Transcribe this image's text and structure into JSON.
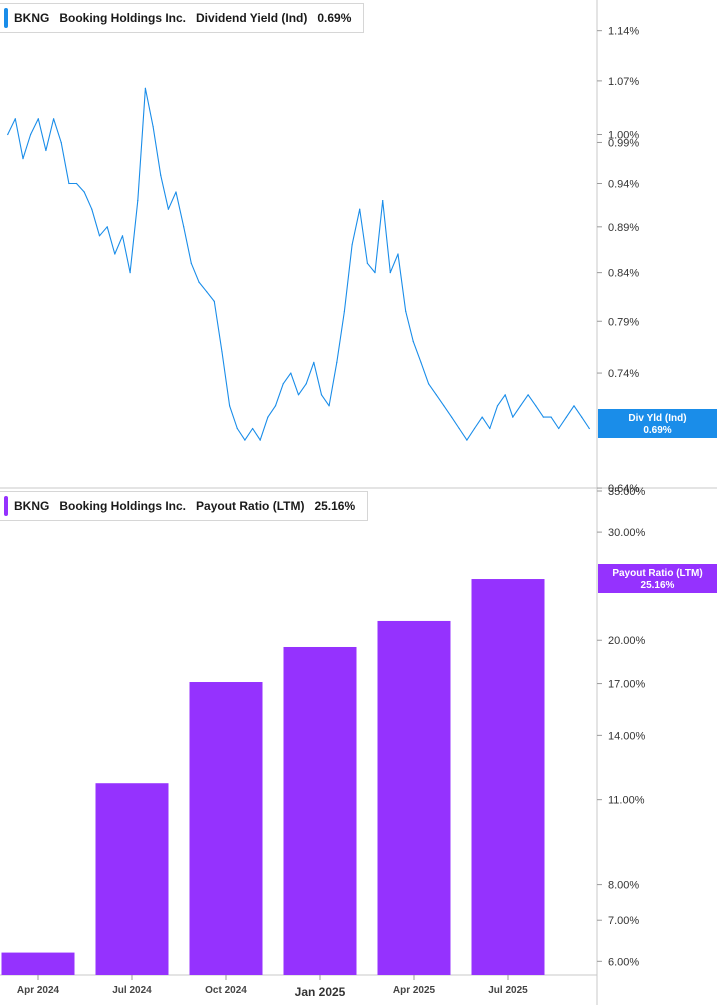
{
  "chart_data": [
    {
      "type": "line",
      "legend": {
        "ticker": "BKNG",
        "company": "Booking Holdings Inc.",
        "metric": "Dividend Yield (Ind)",
        "value": "0.69%"
      },
      "badge": {
        "label": "Div Yld (Ind)",
        "value": "0.69%"
      },
      "color": "#1a8de9",
      "y_scale": "log",
      "ylim": [
        0.64,
        1.14
      ],
      "y_ticks": [
        "1.14%",
        "1.07%",
        "1.00%",
        "0.99%",
        "0.94%",
        "0.89%",
        "0.84%",
        "0.79%",
        "0.74%",
        "0.64%"
      ],
      "series": [
        {
          "x": [
            "2024-03-08",
            "2024-03-15",
            "2024-03-22",
            "2024-03-29",
            "2024-04-05",
            "2024-04-12",
            "2024-04-19",
            "2024-04-26",
            "2024-05-03",
            "2024-05-10",
            "2024-05-17",
            "2024-05-24",
            "2024-05-31",
            "2024-06-07",
            "2024-06-14",
            "2024-06-21",
            "2024-06-28",
            "2024-07-05",
            "2024-07-12",
            "2024-07-19",
            "2024-07-26",
            "2024-08-02",
            "2024-08-09",
            "2024-08-16",
            "2024-08-23",
            "2024-08-30",
            "2024-09-06",
            "2024-09-13",
            "2024-09-20",
            "2024-09-27",
            "2024-10-04",
            "2024-10-11",
            "2024-10-18",
            "2024-10-25",
            "2024-11-01",
            "2024-11-08",
            "2024-11-15",
            "2024-11-22",
            "2024-11-29",
            "2024-12-06",
            "2024-12-13",
            "2024-12-20",
            "2024-12-27",
            "2025-01-03",
            "2025-01-10",
            "2025-01-17",
            "2025-01-24",
            "2025-01-31",
            "2025-02-07",
            "2025-02-14",
            "2025-02-21",
            "2025-02-28",
            "2025-03-07",
            "2025-03-14",
            "2025-03-21",
            "2025-03-28",
            "2025-04-04",
            "2025-04-11",
            "2025-04-18",
            "2025-04-25",
            "2025-05-02",
            "2025-05-09",
            "2025-05-16",
            "2025-05-23",
            "2025-05-30",
            "2025-06-06",
            "2025-06-13",
            "2025-06-20",
            "2025-06-27",
            "2025-07-04",
            "2025-07-11",
            "2025-07-18",
            "2025-07-25",
            "2025-08-01",
            "2025-08-08",
            "2025-08-15",
            "2025-08-22"
          ],
          "values": [
            1.0,
            1.02,
            0.97,
            1.0,
            1.02,
            0.98,
            1.02,
            0.99,
            0.94,
            0.94,
            0.93,
            0.91,
            0.88,
            0.89,
            0.86,
            0.88,
            0.84,
            0.92,
            1.06,
            1.01,
            0.95,
            0.91,
            0.93,
            0.89,
            0.85,
            0.83,
            0.82,
            0.81,
            0.76,
            0.71,
            0.69,
            0.68,
            0.69,
            0.68,
            0.7,
            0.71,
            0.73,
            0.74,
            0.72,
            0.73,
            0.75,
            0.72,
            0.71,
            0.75,
            0.8,
            0.87,
            0.91,
            0.85,
            0.84,
            0.92,
            0.84,
            0.86,
            0.8,
            0.77,
            0.75,
            0.73,
            0.72,
            0.71,
            0.7,
            0.69,
            0.68,
            0.69,
            0.7,
            0.69,
            0.71,
            0.72,
            0.7,
            0.71,
            0.72,
            0.71,
            0.7,
            0.7,
            0.69,
            0.7,
            0.71,
            0.7,
            0.69
          ]
        }
      ]
    },
    {
      "type": "bar",
      "legend": {
        "ticker": "BKNG",
        "company": "Booking Holdings Inc.",
        "metric": "Payout Ratio (LTM)",
        "value": "25.16%"
      },
      "badge": {
        "label": "Payout Ratio (LTM)",
        "value": "25.16%"
      },
      "color": "#9532fe",
      "y_scale": "log",
      "ylim": [
        5.7,
        35
      ],
      "y_ticks": [
        "35.00%",
        "30.00%",
        "20.00%",
        "17.00%",
        "14.00%",
        "11.00%",
        "8.00%",
        "7.00%",
        "6.00%"
      ],
      "x": [
        "2024-03-31",
        "2024-06-30",
        "2024-09-30",
        "2024-12-31",
        "2025-03-31",
        "2025-06-30"
      ],
      "values": [
        6.2,
        11.7,
        17.1,
        19.5,
        21.5,
        25.16
      ],
      "xlabels": [
        "Apr 2024",
        "Jul 2024",
        "Oct 2024",
        "Jan 2025",
        "Apr 2025",
        "Jul 2025"
      ],
      "xlabel_major": "Jan 2025"
    }
  ]
}
